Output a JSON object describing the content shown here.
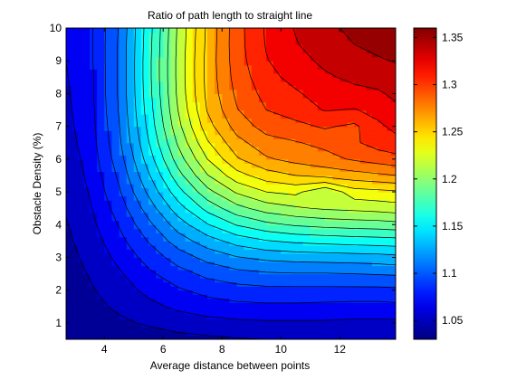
{
  "chart_data": {
    "type": "heatmap",
    "subtype": "filled-contour",
    "title": "Ratio of path length to straight line",
    "xlabel": "Average distance between points",
    "ylabel": "Obstacle Density (%)",
    "xlim": [
      2.7,
      13.9
    ],
    "ylim": [
      0.5,
      10
    ],
    "xticks": [
      "4",
      "6",
      "8",
      "10",
      "12"
    ],
    "yticks": [
      "1",
      "2",
      "3",
      "4",
      "5",
      "6",
      "7",
      "8",
      "9",
      "10"
    ],
    "colorbar": {
      "colormap": "jet",
      "range": [
        1.03,
        1.36
      ],
      "ticks": [
        "1.05",
        "1.1",
        "1.15",
        "1.2",
        "1.25",
        "1.3",
        "1.35"
      ]
    },
    "contour_levels": [
      1.03,
      1.045,
      1.06,
      1.075,
      1.09,
      1.105,
      1.12,
      1.135,
      1.15,
      1.165,
      1.18,
      1.195,
      1.21,
      1.225,
      1.24,
      1.255,
      1.27,
      1.285,
      1.3,
      1.315,
      1.33,
      1.345,
      1.36
    ],
    "x": [
      2.7,
      3.5,
      4.5,
      5.5,
      6.5,
      7.5,
      8.5,
      9.5,
      10.5,
      11.5,
      12.5,
      13.3,
      13.9
    ],
    "y": [
      0.5,
      1,
      1.5,
      2,
      2.5,
      3,
      3.5,
      4,
      4.5,
      5,
      5.5,
      6,
      6.5,
      7,
      7.5,
      8,
      8.5,
      9,
      9.5,
      10
    ],
    "z": [
      [
        1.03,
        1.032,
        1.035,
        1.037,
        1.04,
        1.042,
        1.044,
        1.045,
        1.046,
        1.046,
        1.046,
        1.046,
        1.046
      ],
      [
        1.033,
        1.036,
        1.042,
        1.047,
        1.052,
        1.055,
        1.057,
        1.058,
        1.058,
        1.058,
        1.057,
        1.057,
        1.057
      ],
      [
        1.035,
        1.04,
        1.048,
        1.056,
        1.063,
        1.068,
        1.071,
        1.072,
        1.072,
        1.071,
        1.07,
        1.07,
        1.071
      ],
      [
        1.036,
        1.043,
        1.053,
        1.064,
        1.073,
        1.08,
        1.084,
        1.086,
        1.086,
        1.086,
        1.086,
        1.086,
        1.087
      ],
      [
        1.038,
        1.046,
        1.058,
        1.072,
        1.084,
        1.094,
        1.1,
        1.103,
        1.104,
        1.104,
        1.105,
        1.106,
        1.107
      ],
      [
        1.04,
        1.049,
        1.064,
        1.081,
        1.097,
        1.11,
        1.119,
        1.124,
        1.126,
        1.127,
        1.128,
        1.129,
        1.131
      ],
      [
        1.042,
        1.052,
        1.07,
        1.091,
        1.112,
        1.128,
        1.141,
        1.149,
        1.153,
        1.155,
        1.157,
        1.158,
        1.159
      ],
      [
        1.044,
        1.055,
        1.076,
        1.101,
        1.127,
        1.149,
        1.166,
        1.176,
        1.182,
        1.185,
        1.187,
        1.188,
        1.19
      ],
      [
        1.046,
        1.058,
        1.082,
        1.112,
        1.143,
        1.17,
        1.19,
        1.202,
        1.208,
        1.212,
        1.214,
        1.216,
        1.218
      ],
      [
        1.048,
        1.061,
        1.088,
        1.123,
        1.159,
        1.19,
        1.212,
        1.225,
        1.229,
        1.212,
        1.234,
        1.236,
        1.238
      ],
      [
        1.05,
        1.063,
        1.093,
        1.133,
        1.174,
        1.209,
        1.234,
        1.248,
        1.255,
        1.26,
        1.264,
        1.267,
        1.27
      ],
      [
        1.052,
        1.065,
        1.098,
        1.142,
        1.187,
        1.225,
        1.253,
        1.268,
        1.275,
        1.28,
        1.287,
        1.292,
        1.295
      ],
      [
        1.054,
        1.067,
        1.102,
        1.149,
        1.197,
        1.238,
        1.265,
        1.279,
        1.284,
        1.289,
        1.298,
        1.306,
        1.31
      ],
      [
        1.056,
        1.068,
        1.104,
        1.154,
        1.205,
        1.249,
        1.276,
        1.291,
        1.296,
        1.302,
        1.297,
        1.312,
        1.319
      ],
      [
        1.057,
        1.069,
        1.106,
        1.157,
        1.21,
        1.256,
        1.284,
        1.3,
        1.307,
        1.316,
        1.314,
        1.32,
        1.327
      ],
      [
        1.058,
        1.07,
        1.107,
        1.159,
        1.213,
        1.259,
        1.288,
        1.305,
        1.313,
        1.322,
        1.326,
        1.328,
        1.333
      ],
      [
        1.059,
        1.07,
        1.107,
        1.16,
        1.214,
        1.26,
        1.291,
        1.31,
        1.32,
        1.328,
        1.333,
        1.336,
        1.34
      ],
      [
        1.06,
        1.071,
        1.107,
        1.16,
        1.214,
        1.26,
        1.293,
        1.314,
        1.325,
        1.333,
        1.339,
        1.343,
        1.346
      ],
      [
        1.06,
        1.071,
        1.107,
        1.159,
        1.213,
        1.259,
        1.294,
        1.316,
        1.329,
        1.338,
        1.345,
        1.35,
        1.352
      ],
      [
        1.06,
        1.071,
        1.106,
        1.158,
        1.212,
        1.258,
        1.294,
        1.317,
        1.331,
        1.341,
        1.349,
        1.355,
        1.358
      ]
    ]
  }
}
